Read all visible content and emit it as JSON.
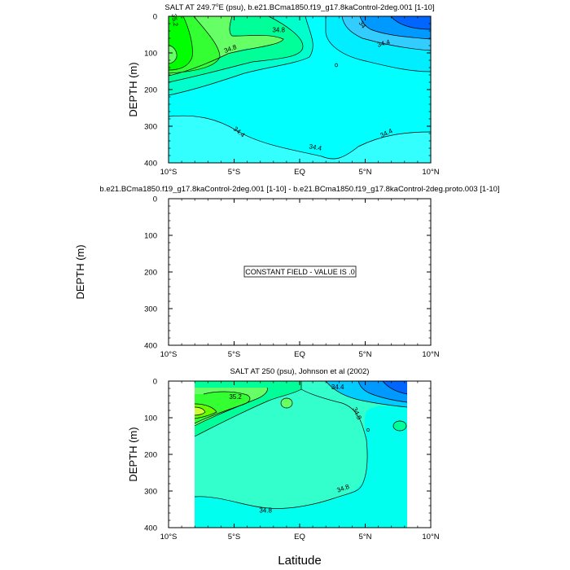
{
  "figure": {
    "xlabel": "Latitude"
  },
  "chart_data": [
    {
      "type": "heatmap",
      "title": "SALT AT 249.7°E (psu), b.e21.BCma1850.f19_g17.8kaControl-2deg.001 [1-10]",
      "title_parts": {
        "pre": "SALT AT 249.7",
        "sup": "o",
        "post": "E (psu), b.e21.BCma1850.f19_g17.8kaControl-2deg.001 [1-10]"
      },
      "ylabel": "DEPTH (m)",
      "x_ticks": [
        "10°S",
        "5°S",
        "EQ",
        "5°N",
        "10°N"
      ],
      "x_tick_values": [
        -10,
        -5,
        0,
        5,
        10
      ],
      "y_ticks": [
        0,
        100,
        200,
        300,
        400
      ],
      "xlim": [
        -10,
        10
      ],
      "ylim": [
        400,
        0
      ],
      "data_extent_x": [
        -10,
        10
      ],
      "colors": {
        "c351": "#00ff00",
        "c350": "#33ff33",
        "c349": "#66ff66",
        "c348": "#00ff99",
        "c347": "#00ffcc",
        "c346": "#00ffff",
        "c345": "#33ffff",
        "c344": "#00eeff",
        "c343": "#33ccff",
        "c342": "#0099ff",
        "c341": "#0066ff"
      },
      "contour_labels": [
        {
          "text": "35.2",
          "x": -9.5,
          "y": 10,
          "rotate": 80
        },
        {
          "text": "34.8",
          "x": -1.6,
          "y": 37,
          "rotate": 0
        },
        {
          "text": "34.8",
          "x": -5.3,
          "y": 88,
          "rotate": -20
        },
        {
          "text": "34",
          "x": 4.8,
          "y": 22,
          "rotate": 55
        },
        {
          "text": "34.4",
          "x": 6.4,
          "y": 73,
          "rotate": -15
        },
        {
          "text": "34.4",
          "x": -4.6,
          "y": 315,
          "rotate": 40
        },
        {
          "text": "34.4",
          "x": 1.2,
          "y": 357,
          "rotate": 10
        },
        {
          "text": "34.4",
          "x": 6.6,
          "y": 318,
          "rotate": -25
        }
      ]
    },
    {
      "type": "heatmap",
      "title": "b.e21.BCma1850.f19_g17.8kaControl-2deg.001 [1-10] - b.e21.BCma1850.f19_g17.8kaControl-2deg.proto.003 [1-10]",
      "ylabel": "DEPTH (m)",
      "x_ticks": [
        "10°S",
        "5°S",
        "EQ",
        "5°N",
        "10°N"
      ],
      "x_tick_values": [
        -10,
        -5,
        0,
        5,
        10
      ],
      "y_ticks": [
        0,
        100,
        200,
        300,
        400
      ],
      "xlim": [
        -10,
        10
      ],
      "ylim": [
        400,
        0
      ],
      "note": "CONSTANT FIELD - VALUE IS .0",
      "constant_value": 0
    },
    {
      "type": "heatmap",
      "title": "SALT AT 250 (psu), Johnson et al (2002)",
      "ylabel": "DEPTH (m)",
      "x_ticks": [
        "10°S",
        "5°S",
        "EQ",
        "5°N",
        "10°N"
      ],
      "x_tick_values": [
        -10,
        -5,
        0,
        5,
        10
      ],
      "y_ticks": [
        0,
        100,
        200,
        300,
        400
      ],
      "xlim": [
        -10,
        10
      ],
      "ylim": [
        400,
        0
      ],
      "data_extent_x": [
        -8,
        8.2
      ],
      "colors": {
        "c353": "#ccff33",
        "c352": "#66ff00",
        "c351": "#33ff33",
        "c350": "#66ff66",
        "c349": "#00ff99",
        "c348": "#33ffcc",
        "c346": "#00ffee",
        "c344": "#00ccff",
        "c342": "#0099ff",
        "c340": "#0066ff"
      },
      "contour_labels": [
        {
          "text": "35.2",
          "x": -4.9,
          "y": 42,
          "rotate": 0
        },
        {
          "text": "34.4",
          "x": 2.9,
          "y": 16,
          "rotate": 0
        },
        {
          "text": "34.8",
          "x": 4.4,
          "y": 88,
          "rotate": 65
        },
        {
          "text": "34.8",
          "x": 3.3,
          "y": 292,
          "rotate": -20
        },
        {
          "text": "34.8",
          "x": -2.6,
          "y": 352,
          "rotate": 0
        }
      ]
    }
  ]
}
